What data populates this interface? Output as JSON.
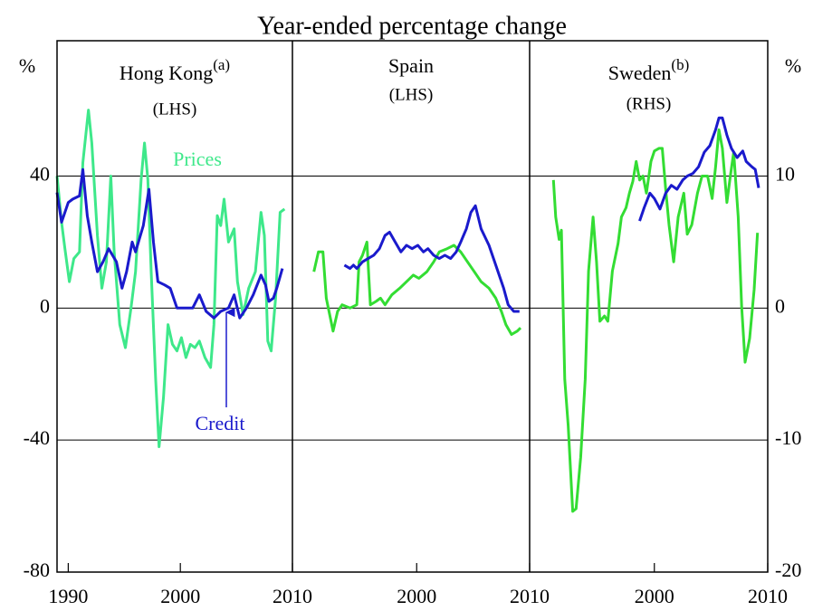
{
  "subtitle": "Year-ended percentage change",
  "chart_data": [
    {
      "type": "line",
      "title": "Hong Kong",
      "title_sup": "(a)",
      "subtitle": "(LHS)",
      "ylabel": "%",
      "ytick_side": "left",
      "xlim": [
        1989,
        2010
      ],
      "xticks": [
        1990,
        2000,
        2010
      ],
      "ylim": [
        -80,
        81
      ],
      "yticks": [
        -80,
        -40,
        0,
        40
      ],
      "grid": true,
      "series": [
        {
          "name": "Prices",
          "color": "#3ee88a",
          "x": [
            1989.0,
            1989.4,
            1989.7,
            1990.1,
            1990.5,
            1991.0,
            1991.3,
            1991.8,
            1992.1,
            1992.6,
            1993.0,
            1993.4,
            1993.8,
            1994.1,
            1994.6,
            1995.1,
            1995.6,
            1996.0,
            1996.5,
            1996.8,
            1997.1,
            1997.4,
            1997.8,
            1998.1,
            1998.5,
            1998.9,
            1999.3,
            1999.7,
            2000.1,
            2000.5,
            2000.9,
            2001.3,
            2001.7,
            2002.2,
            2002.7,
            2003.0,
            2003.3,
            2003.6,
            2003.9,
            2004.3,
            2004.8,
            2005.1,
            2005.6,
            2006.1,
            2006.7,
            2007.2,
            2007.5,
            2007.8,
            2008.1,
            2008.5,
            2008.9,
            2009.3
          ],
          "values": [
            40,
            26,
            18,
            8,
            15,
            17,
            44,
            60,
            50,
            22,
            6,
            14,
            40,
            17,
            -5,
            -12,
            0,
            11,
            39,
            50,
            39,
            11,
            -22,
            -42,
            -27,
            -5,
            -11,
            -13,
            -9,
            -15,
            -11,
            -12,
            -10,
            -15,
            -18,
            -5,
            28,
            25,
            33,
            20,
            24,
            8,
            -2,
            6,
            11,
            29,
            22,
            -10,
            -13,
            3,
            29,
            30
          ]
        },
        {
          "name": "Credit",
          "color": "#1a1acc",
          "x": [
            1989.0,
            1989.4,
            1990.0,
            1990.4,
            1991.0,
            1991.3,
            1991.7,
            1992.1,
            1992.6,
            1993.1,
            1993.6,
            1994.3,
            1994.8,
            1995.2,
            1995.7,
            1996.0,
            1996.7,
            1997.2,
            1997.6,
            1998.0,
            1998.6,
            1999.1,
            1999.7,
            2000.5,
            2001.1,
            2001.7,
            2002.3,
            2003.0,
            2003.6,
            2004.3,
            2004.8,
            2005.3,
            2005.9,
            2006.5,
            2007.2,
            2007.6,
            2007.9,
            2008.3,
            2008.6,
            2009.1
          ],
          "values": [
            35,
            26,
            32,
            33,
            34,
            42,
            28,
            20,
            11,
            14,
            18,
            14,
            6,
            11,
            20,
            17,
            25,
            36,
            20,
            8,
            7,
            6,
            0,
            0,
            0,
            4,
            -1,
            -3,
            -1,
            0,
            4,
            -3,
            0,
            4,
            10,
            7,
            2,
            3,
            6,
            12
          ]
        }
      ]
    },
    {
      "type": "line",
      "title": "Spain",
      "subtitle": "(LHS)",
      "ytick_side": "none",
      "xlim": [
        1989,
        2010
      ],
      "xticks": [
        2000,
        2010
      ],
      "ylim": [
        -80,
        81
      ],
      "yticks": [
        -80,
        -40,
        0,
        40
      ],
      "grid": true,
      "series": [
        {
          "color": "#33dd33",
          "x": [
            1990.9,
            1991.3,
            1991.7,
            1992.0,
            1992.6,
            1993.0,
            1993.4,
            1994.1,
            1994.7,
            1994.9,
            1995.2,
            1995.6,
            1995.9,
            1996.4,
            1996.8,
            1997.2,
            1997.8,
            1998.5,
            1999.1,
            1999.7,
            2000.2,
            2000.9,
            2001.5,
            2002.0,
            2002.7,
            2003.3,
            2003.9,
            2004.5,
            2005.1,
            2005.7,
            2006.4,
            2007.0,
            2007.5,
            2007.9,
            2008.4,
            2008.9,
            2009.2
          ],
          "values": [
            11,
            17,
            17,
            3,
            -7,
            -1,
            1,
            0,
            1,
            14,
            16,
            20,
            1,
            2,
            3,
            1,
            4,
            6,
            8,
            10,
            9,
            11,
            14,
            17,
            18,
            19,
            17,
            14,
            11,
            8,
            6,
            3,
            -1,
            -5,
            -8,
            -7,
            -6
          ]
        },
        {
          "color": "#1a1acc",
          "x": [
            1993.6,
            1994.1,
            1994.4,
            1994.7,
            1995.2,
            1995.7,
            1996.2,
            1996.7,
            1997.2,
            1997.6,
            1998.1,
            1998.6,
            1999.1,
            1999.6,
            2000.1,
            2000.6,
            2001.0,
            2001.5,
            2002.0,
            2002.5,
            2003.0,
            2003.5,
            2003.9,
            2004.4,
            2004.8,
            2005.2,
            2005.7,
            2006.4,
            2007.0,
            2007.7,
            2008.1,
            2008.6,
            2009.1
          ],
          "values": [
            13,
            12,
            13,
            12,
            14,
            15,
            16,
            18,
            22,
            23,
            20,
            17,
            19,
            18,
            19,
            17,
            18,
            16,
            15,
            16,
            15,
            17,
            20,
            24,
            29,
            31,
            24,
            19,
            13,
            6,
            1,
            -1,
            -1
          ]
        }
      ]
    },
    {
      "type": "line",
      "title": "Sweden",
      "title_sup": "(b)",
      "subtitle": "(RHS)",
      "ylabel": "%",
      "ytick_side": "right",
      "xlim": [
        1989,
        2010
      ],
      "xticks": [
        2000,
        2010
      ],
      "ylim": [
        -20,
        20.25
      ],
      "yticks": [
        -20,
        -10,
        0,
        10
      ],
      "grid": true,
      "series": [
        {
          "color": "#33dd33",
          "x": [
            1991.1,
            1991.3,
            1991.6,
            1991.8,
            1992.1,
            1992.4,
            1992.8,
            1993.1,
            1993.5,
            1993.9,
            1994.2,
            1994.6,
            1994.9,
            1995.2,
            1995.6,
            1995.9,
            1996.3,
            1996.8,
            1997.1,
            1997.5,
            1997.8,
            1998.1,
            1998.4,
            1998.7,
            1999.0,
            1999.3,
            1999.7,
            2000.0,
            2000.4,
            2000.7,
            2001.0,
            2001.3,
            2001.7,
            2002.1,
            2002.6,
            2002.9,
            2003.3,
            2003.8,
            2004.2,
            2004.7,
            2005.1,
            2005.4,
            2005.7,
            2006.0,
            2006.4,
            2006.7,
            2007.0,
            2007.4,
            2007.7,
            2008.0,
            2008.4,
            2008.8,
            2009.1
          ],
          "values": [
            9.7,
            6.9,
            5.2,
            5.9,
            -5.4,
            -8.9,
            -15.4,
            -15.2,
            -11.3,
            -5.4,
            2.8,
            6.9,
            3.5,
            -1.0,
            -0.6,
            -1.0,
            2.8,
            4.9,
            6.9,
            7.6,
            8.7,
            9.6,
            11.1,
            9.7,
            10.0,
            8.7,
            11.1,
            11.9,
            12.1,
            12.1,
            9.0,
            6.3,
            3.5,
            6.9,
            8.7,
            5.6,
            6.3,
            8.7,
            10.0,
            10.0,
            8.3,
            10.7,
            13.5,
            12.1,
            8.0,
            10.0,
            11.8,
            6.9,
            0.1,
            -4.1,
            -2.3,
            1.4,
            5.7
          ]
        },
        {
          "color": "#1a1acc",
          "x": [
            1998.7,
            1999.1,
            1999.6,
            2000.0,
            2000.5,
            2001.0,
            2001.5,
            2002.0,
            2002.5,
            2002.9,
            2003.4,
            2003.9,
            2004.4,
            2004.9,
            2005.4,
            2005.7,
            2006.0,
            2006.4,
            2006.8,
            2007.3,
            2007.8,
            2008.1,
            2008.6,
            2008.9,
            2009.2
          ],
          "values": [
            6.6,
            7.6,
            8.7,
            8.3,
            7.5,
            8.7,
            9.3,
            9.0,
            9.7,
            10.0,
            10.2,
            10.7,
            11.8,
            12.3,
            13.5,
            14.4,
            14.4,
            13.1,
            12.1,
            11.4,
            11.9,
            11.1,
            10.7,
            10.5,
            9.1
          ]
        }
      ]
    }
  ]
}
